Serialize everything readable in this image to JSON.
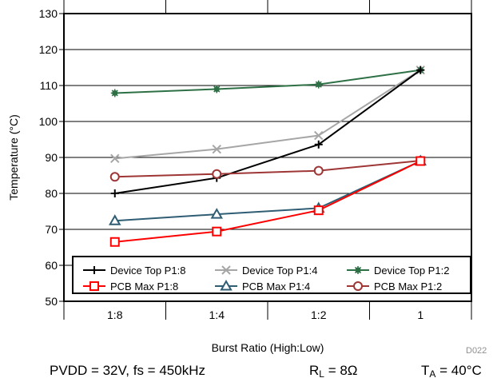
{
  "chart_data": {
    "type": "line",
    "categories": [
      "1:8",
      "1:4",
      "1:2",
      "1"
    ],
    "xlabel": "Burst Ratio (High:Low)",
    "ylabel": "Temperature (°C)",
    "ylim": [
      50,
      130
    ],
    "yticks": [
      50,
      60,
      70,
      80,
      90,
      100,
      110,
      120,
      130
    ],
    "grid": true,
    "legend_position": "bottom",
    "series": [
      {
        "name": "Device Top P1:8",
        "color": "#000000",
        "marker": "plus",
        "values": [
          80,
          84.3,
          93.6,
          114.3
        ]
      },
      {
        "name": "Device Top P1:4",
        "color": "#a6a6a6",
        "marker": "x",
        "values": [
          89.7,
          92.3,
          96.1,
          114.3
        ]
      },
      {
        "name": "Device Top P1:2",
        "color": "#2e7045",
        "marker": "star",
        "values": [
          107.9,
          109.0,
          110.3,
          114.3
        ]
      },
      {
        "name": "PCB Max P1:8",
        "color": "#ff0000",
        "marker": "square",
        "values": [
          66.5,
          69.4,
          75.3,
          89.0
        ]
      },
      {
        "name": "PCB Max P1:4",
        "color": "#2f5d73",
        "marker": "triangle",
        "values": [
          72.4,
          74.2,
          75.9,
          89.0
        ]
      },
      {
        "name": "PCB Max P1:2",
        "color": "#9e3636",
        "marker": "circle",
        "values": [
          84.6,
          85.4,
          86.3,
          89.1
        ]
      }
    ]
  },
  "footer": {
    "pvdd": "PVDD = 32V, fs = 450kHz",
    "rl_prefix": "R",
    "rl_sub": "L",
    "rl_suffix": " = 8Ω",
    "ta_prefix": "T",
    "ta_sub": "A",
    "ta_suffix": " = 40°C",
    "code": "D022"
  }
}
